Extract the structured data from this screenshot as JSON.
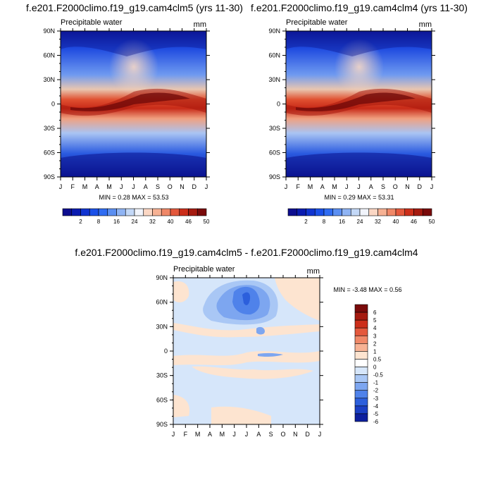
{
  "chart_data": [
    {
      "type": "heatmap",
      "title": "f.e201.F2000climo.f19_g19.cam4clm5 (yrs 11-30)",
      "left_label": "Precipitable water",
      "right_label": "mm",
      "x_tick_labels": [
        "J",
        "F",
        "M",
        "A",
        "M",
        "J",
        "J",
        "A",
        "S",
        "O",
        "N",
        "D",
        "J"
      ],
      "y_tick_labels": [
        "90S",
        "60S",
        "30S",
        "0",
        "30N",
        "60N",
        "90N"
      ],
      "y_values": [
        -90,
        -60,
        -30,
        0,
        30,
        60,
        90
      ],
      "min_max_text": "MIN =   0.28 MAX =  53.53",
      "min": 0.28,
      "max": 53.53,
      "colorbar_labels": [
        "2",
        "8",
        "16",
        "24",
        "32",
        "40",
        "46",
        "50"
      ]
    },
    {
      "type": "heatmap",
      "title": "f.e201.F2000climo.f19_g19.cam4clm4 (yrs 11-30)",
      "left_label": "Precipitable water",
      "right_label": "mm",
      "x_tick_labels": [
        "J",
        "F",
        "M",
        "A",
        "M",
        "J",
        "J",
        "A",
        "S",
        "O",
        "N",
        "D",
        "J"
      ],
      "y_tick_labels": [
        "90S",
        "60S",
        "30S",
        "0",
        "30N",
        "60N",
        "90N"
      ],
      "y_values": [
        -90,
        -60,
        -30,
        0,
        30,
        60,
        90
      ],
      "min_max_text": "MIN =   0.29 MAX =  53.31",
      "min": 0.29,
      "max": 53.31,
      "colorbar_labels": [
        "2",
        "8",
        "16",
        "24",
        "32",
        "40",
        "46",
        "50"
      ]
    },
    {
      "type": "heatmap",
      "title": "f.e201.F2000climo.f19_g19.cam4clm5 - f.e201.F2000climo.f19_g19.cam4clm4",
      "left_label": "Precipitable water",
      "right_label": "mm",
      "x_tick_labels": [
        "J",
        "F",
        "M",
        "A",
        "M",
        "J",
        "J",
        "A",
        "S",
        "O",
        "N",
        "D",
        "J"
      ],
      "y_tick_labels": [
        "90S",
        "60S",
        "30S",
        "0",
        "30N",
        "60N",
        "90N"
      ],
      "y_values": [
        -90,
        -60,
        -30,
        0,
        30,
        60,
        90
      ],
      "min_max_text": "MIN =  -3.48 MAX =   0.56",
      "min": -3.48,
      "max": 0.56,
      "colorbar_labels": [
        "6",
        "5",
        "4",
        "3",
        "2",
        "1",
        "0.5",
        "0",
        "-0.5",
        "-1",
        "-2",
        "-3",
        "-4",
        "-5",
        "-6"
      ]
    }
  ],
  "colors": {
    "sequential": [
      "#0d0d8f",
      "#0a1bb0",
      "#1034d0",
      "#1a50e8",
      "#2f6cf2",
      "#5b8ff2",
      "#8fb4f4",
      "#c3d8f7",
      "#f1f4fb",
      "#fbd7c4",
      "#f7b294",
      "#f08868",
      "#e4583c",
      "#cc2e1a",
      "#a51a0f",
      "#7a0a0a"
    ],
    "diverging": [
      "#7a0a0a",
      "#a51a0f",
      "#cc2e1a",
      "#e4583c",
      "#f08868",
      "#f7b294",
      "#fde4d0",
      "#ffffff",
      "#d6e6fa",
      "#a9c7f5",
      "#7da6f0",
      "#4f82ea",
      "#2c5fdc",
      "#1a3fc4",
      "#0d1f9e"
    ]
  }
}
